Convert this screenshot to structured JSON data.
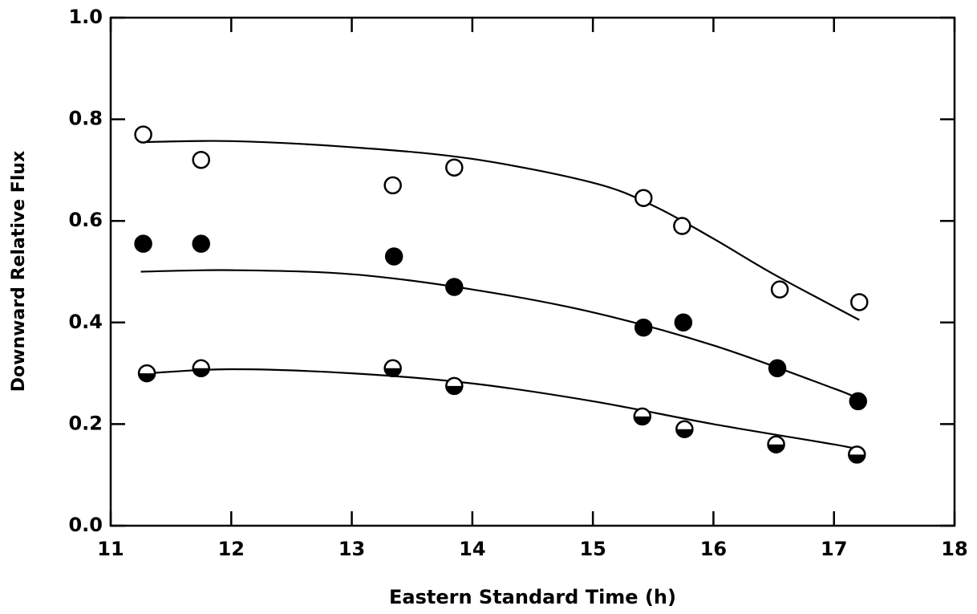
{
  "chart_data": {
    "type": "scatter",
    "xlabel": "Eastern Standard Time (h)",
    "ylabel": "Downward Relative Flux",
    "xlim": [
      11,
      18
    ],
    "ylim": [
      0,
      1
    ],
    "xticks": [
      11,
      12,
      13,
      14,
      15,
      16,
      17,
      18
    ],
    "yticks": [
      {
        "value": 0,
        "label": "0.0"
      },
      {
        "value": 0.2,
        "label": "0.2"
      },
      {
        "value": 0.4,
        "label": "0.4"
      },
      {
        "value": 0.6,
        "label": "0.6"
      },
      {
        "value": 0.8,
        "label": "0.8"
      },
      {
        "value": 1,
        "label": "1.0"
      }
    ],
    "series": [
      {
        "marker": "open",
        "color": "#000000",
        "x": [
          11.27,
          11.75,
          13.34,
          13.85,
          15.42,
          15.74,
          16.55,
          17.21
        ],
        "values": [
          0.77,
          0.72,
          0.67,
          0.705,
          0.645,
          0.59,
          0.465,
          0.44
        ],
        "fit": {
          "x": [
            11.25,
            12,
            13,
            14,
            15,
            15.5,
            16,
            16.5,
            17.21
          ],
          "values": [
            0.755,
            0.757,
            0.745,
            0.722,
            0.675,
            0.63,
            0.565,
            0.495,
            0.405
          ]
        }
      },
      {
        "marker": "filled",
        "color": "#000000",
        "x": [
          11.27,
          11.75,
          13.35,
          13.85,
          15.42,
          15.75,
          16.53,
          17.2
        ],
        "values": [
          0.555,
          0.555,
          0.53,
          0.47,
          0.39,
          0.4,
          0.31,
          0.245
        ],
        "fit": {
          "x": [
            11.25,
            12,
            13,
            14,
            15,
            16,
            17,
            17.2
          ],
          "values": [
            0.5,
            0.503,
            0.495,
            0.465,
            0.42,
            0.355,
            0.27,
            0.25
          ]
        }
      },
      {
        "marker": "half",
        "color": "#000000",
        "x": [
          11.3,
          11.75,
          13.34,
          13.85,
          15.41,
          15.76,
          16.52,
          17.19
        ],
        "values": [
          0.3,
          0.31,
          0.31,
          0.275,
          0.215,
          0.19,
          0.16,
          0.14
        ],
        "fit": {
          "x": [
            11.3,
            12,
            13,
            14,
            15,
            16,
            17,
            17.2
          ],
          "values": [
            0.3,
            0.308,
            0.3,
            0.28,
            0.245,
            0.2,
            0.16,
            0.15
          ]
        }
      }
    ]
  }
}
